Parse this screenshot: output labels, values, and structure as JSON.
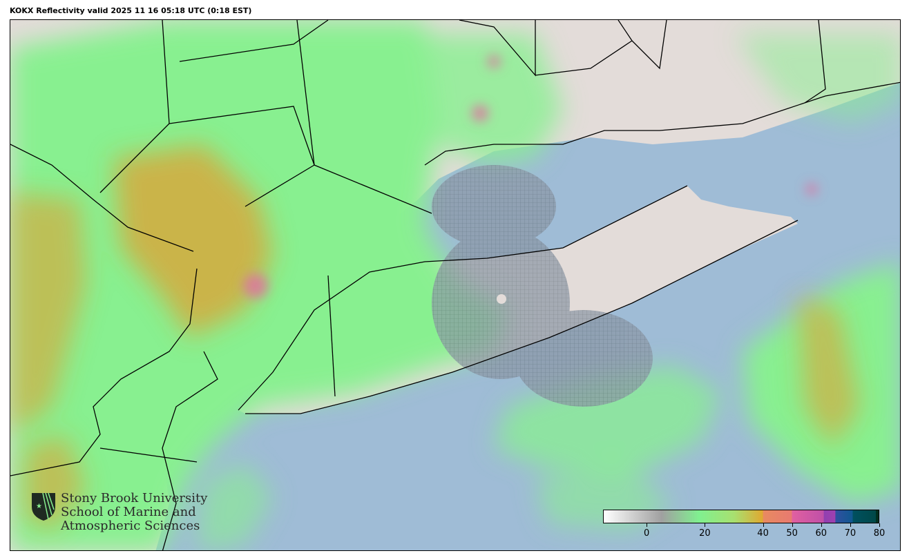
{
  "title": "KOKX Reflectivity valid 2025 11 16 05:18 UTC (0:18 EST)",
  "colorbar": {
    "range": [
      -15,
      80
    ],
    "ticks": [
      0,
      20,
      40,
      50,
      60,
      70,
      80
    ],
    "tick_labels": [
      "0",
      "20",
      "40",
      "50",
      "60",
      "70",
      "80"
    ],
    "stops": [
      {
        "v": -15,
        "c": "#ffffff"
      },
      {
        "v": 5,
        "c": "#a0a0a0"
      },
      {
        "v": 18,
        "c": "#80f090"
      },
      {
        "v": 30,
        "c": "#a8e070"
      },
      {
        "v": 40,
        "c": "#e0a830"
      },
      {
        "v": 40.1,
        "c": "#e88a60"
      },
      {
        "v": 50,
        "c": "#e87a70"
      },
      {
        "v": 50.1,
        "c": "#e060a0"
      },
      {
        "v": 61,
        "c": "#c050a8"
      },
      {
        "v": 61.1,
        "c": "#9040b0"
      },
      {
        "v": 65,
        "c": "#a040b0"
      },
      {
        "v": 65.1,
        "c": "#3050a0"
      },
      {
        "v": 71,
        "c": "#105890"
      },
      {
        "v": 71.1,
        "c": "#005060"
      },
      {
        "v": 79,
        "c": "#004848"
      },
      {
        "v": 79.1,
        "c": "#003020"
      }
    ]
  },
  "colors": {
    "ocean": "#9fbcd6",
    "land": "#e3dcd9",
    "radar_green": "#88f090",
    "radar_orange": "#e0a030",
    "radar_pink": "#e070a0",
    "clutter_gray": "#8c8c8c"
  },
  "logo": {
    "line1": "Stony Brook University",
    "line2": "School of Marine and",
    "line3": "Atmospheric Sciences"
  }
}
